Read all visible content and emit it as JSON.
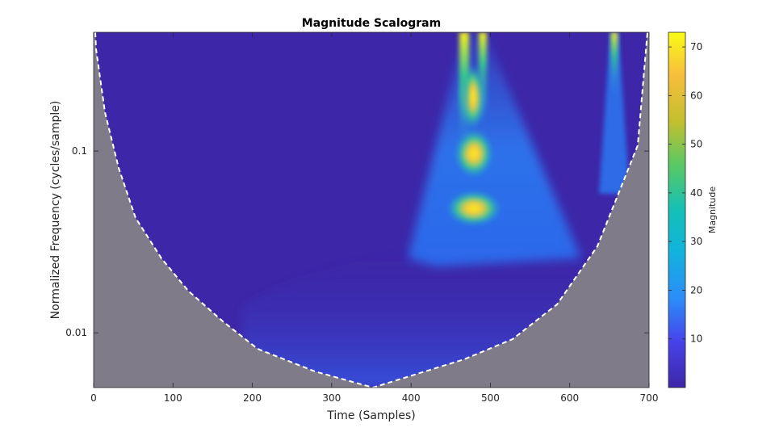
{
  "chart_data": {
    "type": "heatmap",
    "title": "Magnitude Scalogram",
    "xlabel": "Time (Samples)",
    "ylabel": "Normalized Frequency  (cycles/sample)",
    "xlim": [
      0,
      700
    ],
    "x_ticks": [
      0,
      100,
      200,
      300,
      400,
      500,
      600,
      700
    ],
    "y_scale": "log",
    "ylim": [
      0.005,
      0.45
    ],
    "y_ticks": [
      {
        "value": 0.01,
        "label": "0.01"
      },
      {
        "value": 0.1,
        "label": "0.1"
      }
    ],
    "colorbar": {
      "label": "Magnitude",
      "colormap": "parula",
      "range": [
        0,
        73
      ],
      "ticks": [
        10,
        20,
        30,
        40,
        50,
        60,
        70
      ]
    },
    "cone_of_influence": {
      "style": "dashed white line",
      "points": [
        [
          0,
          0.45
        ],
        [
          10,
          0.3
        ],
        [
          50,
          0.06
        ],
        [
          100,
          0.03
        ],
        [
          150,
          0.02
        ],
        [
          200,
          0.014
        ],
        [
          250,
          0.0105
        ],
        [
          300,
          0.0075
        ],
        [
          350,
          0.005
        ],
        [
          400,
          0.0065
        ],
        [
          450,
          0.0078
        ],
        [
          500,
          0.0093
        ],
        [
          550,
          0.0115
        ],
        [
          600,
          0.015
        ],
        [
          650,
          0.023
        ],
        [
          700,
          0.044
        ],
        [
          700,
          0.45
        ]
      ]
    },
    "features": [
      {
        "time": 480,
        "frequency_band": [
          0.03,
          0.45
        ],
        "peak_magnitude": 73,
        "peak_frequency": 0.09
      },
      {
        "time": 658,
        "frequency_band": [
          0.2,
          0.45
        ],
        "peak_magnitude": 72,
        "peak_frequency": 0.45
      }
    ],
    "colors": {
      "low": "#3d26a8",
      "outside_cone_overlay": "#808080",
      "dashed_line": "#ffffff"
    }
  }
}
